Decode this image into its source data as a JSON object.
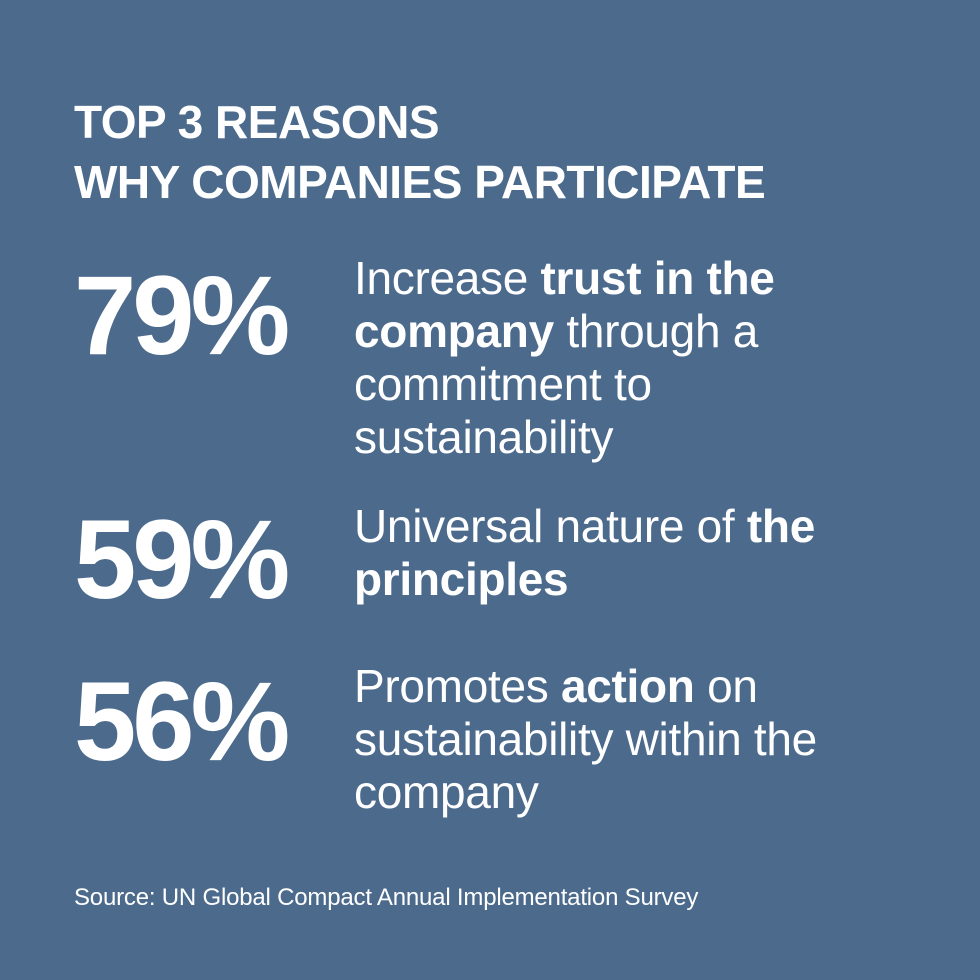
{
  "title": {
    "line1": "TOP 3 REASONS",
    "line2": "WHY COMPANIES PARTICIPATE"
  },
  "reasons": [
    {
      "percent": "79%",
      "text_before": "Increase ",
      "text_bold": "trust in the company",
      "text_after": " through a commitment to sustainability"
    },
    {
      "percent": "59%",
      "text_before": "Universal nature of ",
      "text_bold": "the principles",
      "text_after": ""
    },
    {
      "percent": "56%",
      "text_before": "Promotes ",
      "text_bold": "action",
      "text_after": " on sustainability within the company"
    }
  ],
  "source": "Source: UN Global Compact Annual Implementation Survey",
  "colors": {
    "background": "#4b6a8c",
    "text": "#ffffff"
  }
}
